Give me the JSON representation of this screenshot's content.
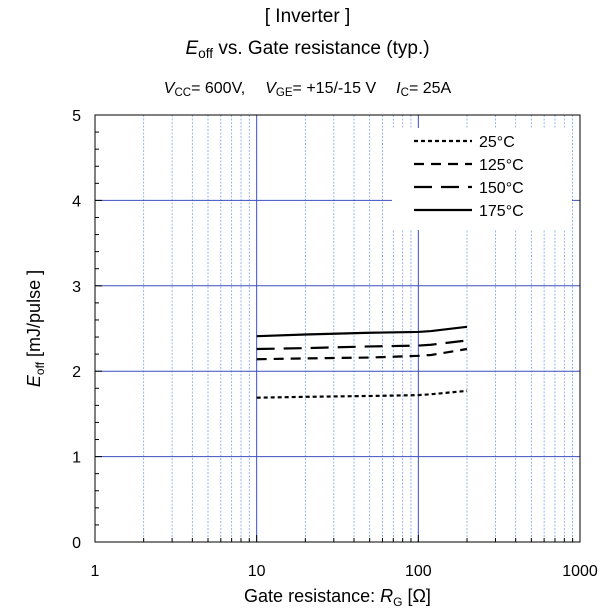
{
  "title": {
    "line1": "[ Inverter ]",
    "line2": {
      "sym": "E",
      "sub": "off",
      "text": " vs.  Gate resistance  (typ.)"
    },
    "line3": {
      "vcc_sym": "V",
      "vcc_sub": "CC",
      "vcc_val": "= 600V,",
      "vge_sym": "V",
      "vge_sub": "GE",
      "vge_val": "= +15/-15 V",
      "ic_sym": "I",
      "ic_sub": "C",
      "ic_val": "= 25A"
    }
  },
  "chart_data": {
    "type": "line",
    "x_scale": "log",
    "xlim": [
      1,
      1000
    ],
    "ylim": [
      0,
      5
    ],
    "x_ticks": [
      1,
      10,
      100,
      1000
    ],
    "x_tick_labels": [
      "1",
      "10",
      "100",
      "1000"
    ],
    "y_ticks": [
      0,
      1,
      2,
      3,
      4,
      5
    ],
    "y_tick_labels": [
      "0",
      "1",
      "2",
      "3",
      "4",
      "5"
    ],
    "xlabel": {
      "text": "Gate resistance: ",
      "sym": "R",
      "sub": "G",
      "unit": " [Ω]"
    },
    "ylabel": {
      "sym": "E",
      "sub": "off",
      "unit": " [mJ/pulse ]"
    },
    "grid": true,
    "legend_position": "top-right",
    "series": [
      {
        "name": "25°C",
        "dash": "4,3",
        "x": [
          10,
          20,
          50,
          100,
          120,
          200
        ],
        "y": [
          1.69,
          1.7,
          1.71,
          1.72,
          1.73,
          1.77
        ]
      },
      {
        "name": "125°C",
        "dash": "10,7",
        "x": [
          10,
          20,
          50,
          100,
          120,
          200
        ],
        "y": [
          2.14,
          2.15,
          2.16,
          2.18,
          2.19,
          2.26
        ]
      },
      {
        "name": "150°C",
        "dash": "18,9",
        "x": [
          10,
          20,
          50,
          100,
          120,
          200
        ],
        "y": [
          2.26,
          2.27,
          2.29,
          2.3,
          2.31,
          2.36
        ]
      },
      {
        "name": "175°C",
        "dash": "",
        "x": [
          10,
          20,
          50,
          100,
          120,
          200
        ],
        "y": [
          2.41,
          2.43,
          2.45,
          2.46,
          2.47,
          2.52
        ]
      }
    ],
    "colors": {
      "major_grid": "#3b4fbf",
      "minor_grid": "#7aa6e8",
      "line": "#000000"
    }
  }
}
